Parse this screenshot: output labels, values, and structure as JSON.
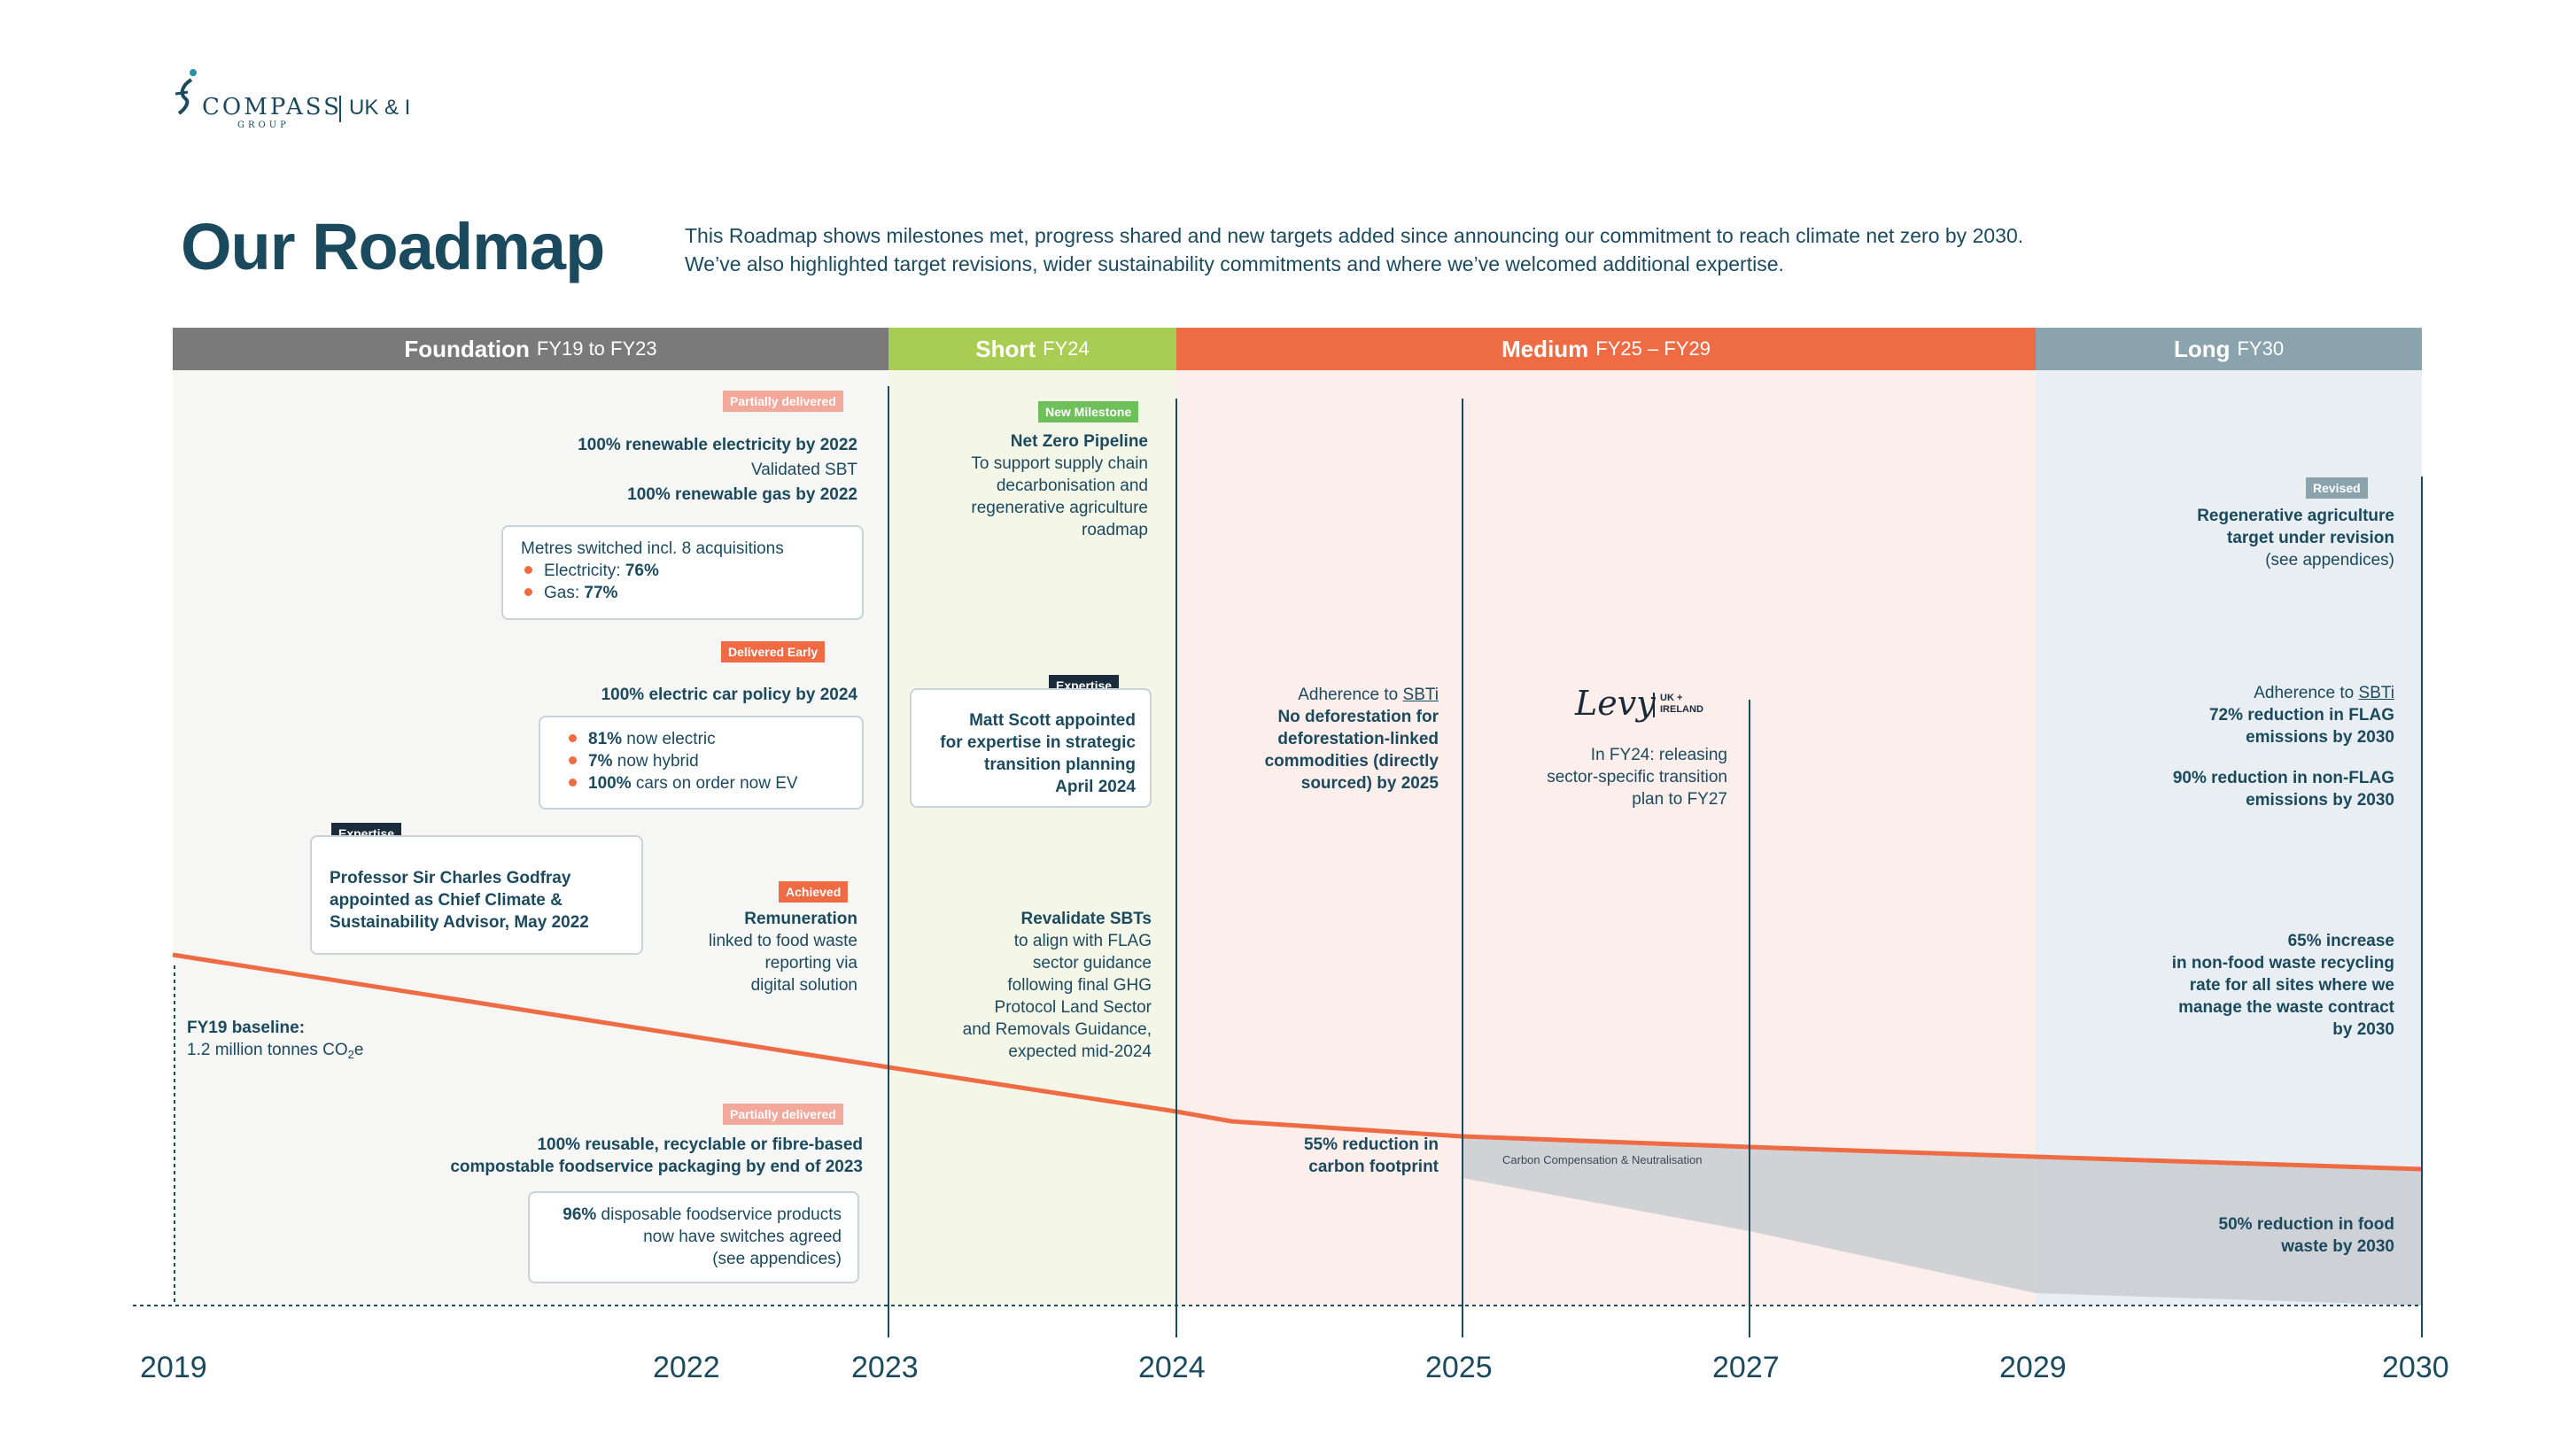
{
  "logo": {
    "brand": "COMPASS",
    "group": "GROUP",
    "region": "UK & I"
  },
  "title": "Our Roadmap",
  "intro": {
    "line1": "This Roadmap shows milestones met, progress shared and new targets added since announcing our commitment to reach climate net zero by 2030.",
    "line2": "We’ve also highlighted target revisions, wider sustainability commitments and where we’ve welcomed additional expertise."
  },
  "phases": {
    "foundation": {
      "label": "Foundation",
      "range": "FY19 to FY23"
    },
    "short": {
      "label": "Short",
      "range": "FY24"
    },
    "medium": {
      "label": "Medium",
      "range": "FY25 – FY29"
    },
    "long": {
      "label": "Long",
      "range": "FY30"
    }
  },
  "colors": {
    "navy": "#1b4a5e",
    "orange": "#ee6b43",
    "grey_bar": "#7a7a7a",
    "green": "#a9cc52",
    "steel": "#8ba3ad",
    "salmon_tag": "#f2a89a",
    "dark_tag": "#1a2b3c",
    "green_tag": "#6fbf5a"
  },
  "foundation": {
    "tag_partial1": "Partially delivered",
    "renewable_elec": "100% renewable electricity by 2022",
    "validated": "Validated SBT",
    "renewable_gas": "100% renewable gas by 2022",
    "metres_box": {
      "title": "Metres switched incl. 8 acquisitions",
      "elec_label": "Electricity: ",
      "elec_val": "76%",
      "gas_label": "Gas: ",
      "gas_val": "77%"
    },
    "tag_early": "Delivered Early",
    "car_policy": "100% electric car policy by 2024",
    "car_box": {
      "b1_val": "81%",
      "b1_txt": " now electric",
      "b2_val": "7%",
      "b2_txt": " now hybrid",
      "b3_val": "100%",
      "b3_txt": " cars on order now EV"
    },
    "tag_expertise": "Expertise",
    "godfray": "Professor Sir Charles Godfray appointed as Chief Climate & Sustainability Advisor, May 2022",
    "tag_achieved": "Achieved",
    "remuneration_title": "Remuneration",
    "remuneration_l1": "linked to food waste",
    "remuneration_l2": "reporting via",
    "remuneration_l3": "digital solution",
    "baseline_title": "FY19 baseline:",
    "baseline_text": "1.2 million tonnes CO",
    "baseline_sub": "2",
    "baseline_e": "e",
    "tag_partial2": "Partially delivered",
    "packaging_l1": "100% reusable, recyclable or fibre-based",
    "packaging_l2": "compostable foodservice packaging by end of 2023",
    "pack_box": {
      "val": "96%",
      "l1": " disposable foodservice products",
      "l2": "now have switches agreed",
      "l3": "(see appendices)"
    }
  },
  "short": {
    "tag_new": "New Milestone",
    "pipeline_title": "Net Zero Pipeline",
    "pipeline_l1": "To support supply chain",
    "pipeline_l2": "decarbonisation and",
    "pipeline_l3": "regenerative agriculture",
    "pipeline_l4": "roadmap",
    "tag_expertise": "Expertise",
    "scott_l1": "Matt Scott appointed",
    "scott_l2": "for expertise in strategic",
    "scott_l3": "transition planning",
    "scott_l4": "April 2024",
    "sbt_title": "Revalidate SBTs",
    "sbt_l1": "to align with FLAG",
    "sbt_l2": "sector guidance",
    "sbt_l3": "following final GHG",
    "sbt_l4": "Protocol Land Sector",
    "sbt_l5": "and Removals Guidance,",
    "sbt_l6": "expected mid-2024"
  },
  "medium": {
    "adherence": "Adherence to ",
    "sbti": "SBTi",
    "defor_l1": "No deforestation for",
    "defor_l2": "deforestation-linked",
    "defor_l3": "commodities (directly",
    "defor_l4": "sourced) by 2025",
    "levy_logo": "Levy",
    "levy_region": "UK + IRELAND",
    "levy_l1": "In FY24: releasing",
    "levy_l2": "sector-specific transition",
    "levy_l3": "plan to FY27",
    "carbon_l1": "55% reduction in",
    "carbon_l2": "carbon footprint",
    "compensation": "Carbon Compensation & Neutralisation"
  },
  "long": {
    "tag_revised": "Revised",
    "regen_l1": "Regenerative agriculture",
    "regen_l2": "target under revision",
    "regen_l3": "(see appendices)",
    "adherence": "Adherence to ",
    "sbti": "SBTi",
    "flag_l1": "72% reduction in FLAG",
    "flag_l2": "emissions by 2030",
    "nonflag_l1": "90% reduction in non-FLAG",
    "nonflag_l2": "emissions by 2030",
    "waste_l1": "65% increase",
    "waste_l2": "in non-food waste recycling",
    "waste_l3": "rate for all sites where we",
    "waste_l4": "manage the waste contract",
    "waste_l5": "by 2030",
    "food_l1": "50% reduction in food",
    "food_l2": "waste by 2030"
  },
  "years": [
    "2019",
    "2022",
    "2023",
    "2024",
    "2025",
    "2027",
    "2029",
    "2030"
  ]
}
